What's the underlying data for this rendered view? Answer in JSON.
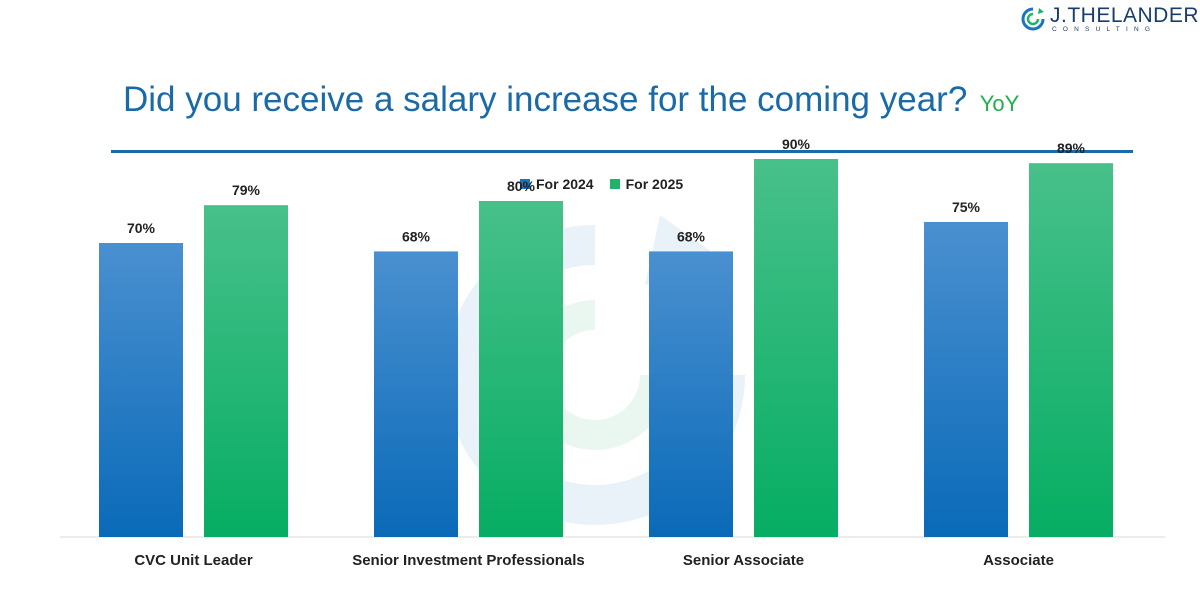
{
  "header": {
    "logo_name": "J.THELANDER",
    "logo_sub": "CONSULTING",
    "title": "Did you receive a salary increase for the coming year?",
    "title_tag": "YoY"
  },
  "colors": {
    "series_2024": "#1a74c2",
    "series_2025": "#1fb36b",
    "title": "#1a6aa8",
    "tag": "#21b04b",
    "logo": "#1b3d6d"
  },
  "chart_data": {
    "type": "bar",
    "title": "Did you receive a salary increase for the coming year?",
    "categories": [
      "CVC Unit Leader",
      "Senior Investment Professionals",
      "Senior Associate",
      "Associate"
    ],
    "series": [
      {
        "name": "For 2024",
        "values": [
          70,
          68,
          68,
          75
        ],
        "labels": [
          "70%",
          "68%",
          "68%",
          "75%"
        ]
      },
      {
        "name": "For 2025",
        "values": [
          79,
          80,
          90,
          89
        ],
        "labels": [
          "79%",
          "80%",
          "90%",
          "89%"
        ]
      }
    ],
    "unit": "%",
    "xlabel": "",
    "ylabel": "",
    "ylim": [
      0,
      100
    ],
    "grid": false,
    "legend_position": "top-center"
  }
}
